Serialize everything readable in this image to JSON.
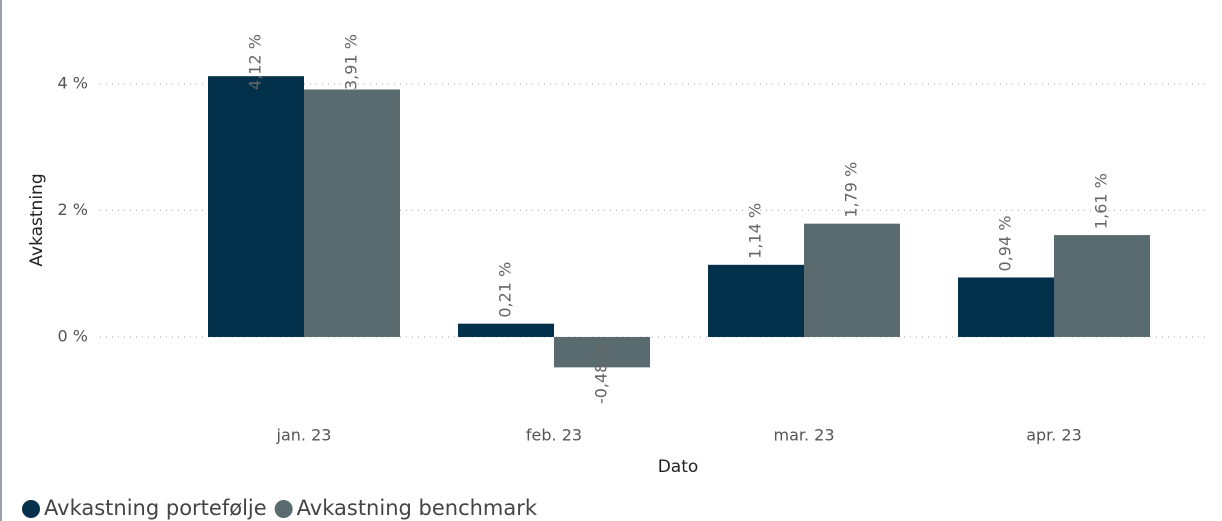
{
  "chart_data": {
    "type": "bar",
    "categories": [
      "jan. 23",
      "feb. 23",
      "mar. 23",
      "apr. 23"
    ],
    "series": [
      {
        "name": "Avkastning portefølje",
        "color": "#03304b",
        "values": [
          4.12,
          0.21,
          1.14,
          0.94
        ],
        "value_labels": [
          "4,12 %",
          "0,21 %",
          "1,14 %",
          "0,94 %"
        ]
      },
      {
        "name": "Avkastning benchmark",
        "color": "#5a6b70",
        "values": [
          3.91,
          -0.48,
          1.79,
          1.61
        ],
        "value_labels": [
          "3,91 %",
          "-0,48 %",
          "1,79 %",
          "1,61 %"
        ]
      }
    ],
    "x_label": "Dato",
    "y_label": "Avkastning",
    "ylim": [
      -1.1,
      5.3
    ],
    "yticks": [
      {
        "value": 0,
        "label": "0 %"
      },
      {
        "value": 2,
        "label": "2 %"
      },
      {
        "value": 4,
        "label": "4 %"
      }
    ],
    "grid": true,
    "legend": "bottom-left"
  }
}
